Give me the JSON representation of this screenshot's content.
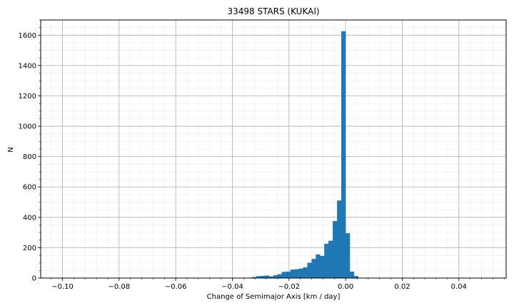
{
  "chart_data": {
    "type": "bar",
    "title": "33498 STARS (KUKAI)",
    "xlabel": "Change of Semimajor Axis [km / day]",
    "ylabel": "N",
    "xlim": [
      -0.1077,
      0.0567
    ],
    "ylim": [
      0,
      1700
    ],
    "xticks": [
      -0.1,
      -0.08,
      -0.06,
      -0.04,
      -0.02,
      0.0,
      0.02,
      0.04
    ],
    "xtick_labels": [
      "−0.10",
      "−0.08",
      "−0.06",
      "−0.04",
      "−0.02",
      "0.00",
      "0.02",
      "0.04"
    ],
    "yticks": [
      0,
      200,
      400,
      600,
      800,
      1000,
      1200,
      1400,
      1600
    ],
    "ytick_labels": [
      "0",
      "200",
      "400",
      "600",
      "800",
      "1000",
      "1200",
      "1400",
      "1600"
    ],
    "grid": true,
    "minor_grid": true,
    "bar_color": "#1f77b4",
    "bin_width": 0.0015,
    "bin_start": -0.0345,
    "values": [
      2,
      6,
      12,
      14,
      16,
      10,
      18,
      25,
      40,
      42,
      55,
      58,
      62,
      70,
      100,
      125,
      155,
      145,
      225,
      245,
      375,
      510,
      1625,
      295,
      42,
      12
    ]
  }
}
